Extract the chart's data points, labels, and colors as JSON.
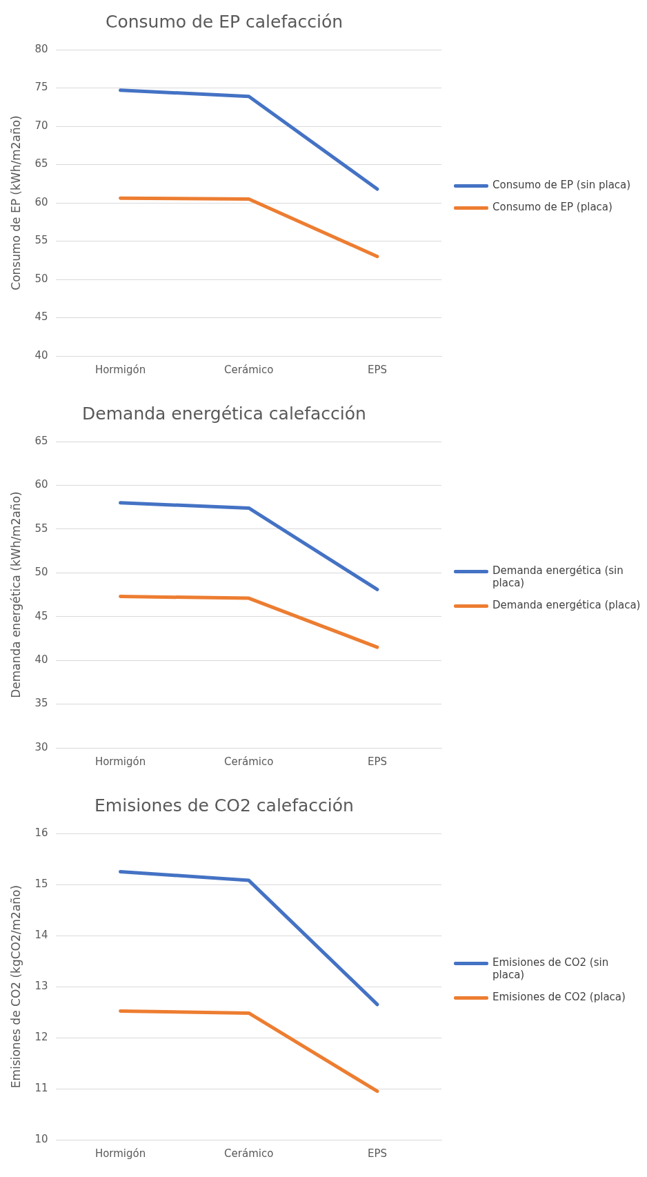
{
  "chart_data": [
    {
      "type": "line",
      "title": "Consumo de EP calefacción",
      "ylabel": "Consumo de EP (kWh/m2año)",
      "categories": [
        "Hormigón",
        "Cerámico",
        "EPS"
      ],
      "series": [
        {
          "name": "Consumo de EP (sin placa)",
          "color": "#4472c4",
          "values": [
            74.7,
            73.9,
            61.8
          ]
        },
        {
          "name": "Consumo de EP (placa)",
          "color": "#ed7d31",
          "values": [
            60.6,
            60.5,
            53.0
          ]
        }
      ],
      "ylim": [
        40,
        80
      ],
      "yticks": [
        40,
        45,
        50,
        55,
        60,
        65,
        70,
        75,
        80
      ],
      "grid": "y",
      "legend": "right",
      "marker": "none",
      "line_style": "solid"
    },
    {
      "type": "line",
      "title": "Demanda energética calefacción",
      "ylabel": "Demanda energética (kWh/m2año)",
      "categories": [
        "Hormigón",
        "Cerámico",
        "EPS"
      ],
      "series": [
        {
          "name": "Demanda energética (sin placa)",
          "color": "#4472c4",
          "values": [
            58.0,
            57.4,
            48.1
          ]
        },
        {
          "name": "Demanda energética (placa)",
          "color": "#ed7d31",
          "values": [
            47.3,
            47.1,
            41.5
          ]
        }
      ],
      "ylim": [
        30,
        65
      ],
      "yticks": [
        30,
        35,
        40,
        45,
        50,
        55,
        60,
        65
      ],
      "grid": "y",
      "legend": "right",
      "marker": "none",
      "line_style": "solid"
    },
    {
      "type": "line",
      "title": "Emisiones de CO2 calefacción",
      "ylabel": "Emisiones de CO2 (kgCO2/m2año)",
      "categories": [
        "Hormigón",
        "Cerámico",
        "EPS"
      ],
      "series": [
        {
          "name": "Emisiones de CO2 (sin placa)",
          "color": "#4472c4",
          "values": [
            15.25,
            15.08,
            12.65
          ]
        },
        {
          "name": "Emisiones de CO2 (placa)",
          "color": "#ed7d31",
          "values": [
            12.52,
            12.48,
            10.95
          ]
        }
      ],
      "ylim": [
        10,
        16
      ],
      "yticks": [
        10,
        11,
        12,
        13,
        14,
        15,
        16
      ],
      "grid": "y",
      "legend": "right",
      "marker": "none",
      "line_style": "solid"
    }
  ]
}
